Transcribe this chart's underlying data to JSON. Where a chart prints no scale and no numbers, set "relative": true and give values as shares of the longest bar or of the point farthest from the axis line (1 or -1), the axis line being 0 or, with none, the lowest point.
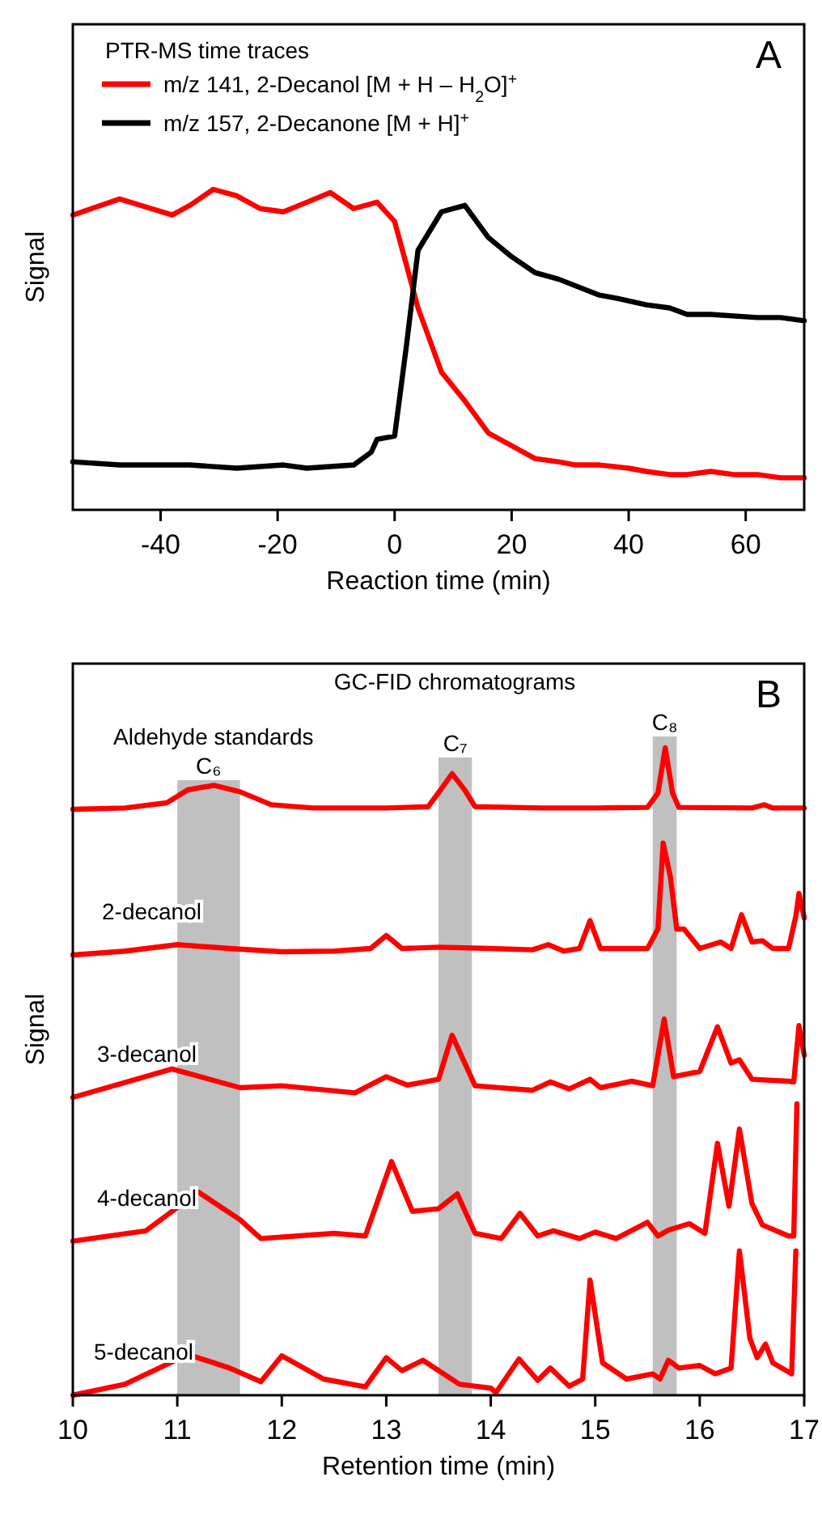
{
  "chart_data": [
    {
      "type": "line",
      "legend_title": "PTR-MS time traces",
      "xlabel": "Reaction time (min)",
      "ylabel": "Signal",
      "relative": true,
      "legend": "top left",
      "tick_labels": "x",
      "annotations": [
        "A"
      ],
      "xlim": [
        -55,
        70
      ],
      "xticks": [
        -40,
        -20,
        0,
        20,
        40,
        60
      ],
      "series": [
        {
          "name": "m/z 141, 2-Decanol [M + H – H$_{2}$O]$^{+}$",
          "color": "#ff0000",
          "x": [
            -55,
            -47,
            -38,
            -35,
            -31,
            -27,
            -23,
            -19,
            -15,
            -11,
            -7,
            -3,
            0,
            4,
            8,
            12,
            16,
            20,
            24,
            28,
            31,
            35,
            40,
            43,
            47,
            50,
            54,
            58,
            62,
            66,
            70
          ],
          "values": [
            0.92,
            0.97,
            0.92,
            0.95,
            1.0,
            0.98,
            0.94,
            0.93,
            0.96,
            0.99,
            0.94,
            0.96,
            0.9,
            0.63,
            0.43,
            0.34,
            0.24,
            0.2,
            0.16,
            0.15,
            0.14,
            0.14,
            0.13,
            0.12,
            0.11,
            0.11,
            0.12,
            0.11,
            0.11,
            0.1,
            0.1
          ]
        },
        {
          "name": "m/z 157, 2-Decanone [M + H]$^{+}$",
          "color": "#000000",
          "x": [
            -55,
            -47,
            -43,
            -35,
            -27,
            -19,
            -15,
            -7,
            -4,
            -3,
            0,
            2,
            4,
            8,
            12,
            16,
            20,
            24,
            28,
            35,
            38,
            43,
            47,
            50,
            54,
            62,
            66,
            70
          ],
          "values": [
            0.15,
            0.14,
            0.14,
            0.14,
            0.13,
            0.14,
            0.13,
            0.14,
            0.18,
            0.22,
            0.23,
            0.51,
            0.81,
            0.93,
            0.95,
            0.85,
            0.79,
            0.74,
            0.72,
            0.67,
            0.66,
            0.64,
            0.63,
            0.61,
            0.61,
            0.6,
            0.6,
            0.59
          ]
        }
      ]
    },
    {
      "type": "line",
      "title": "GC-FID chromatograms",
      "xlabel": "Retention time (min)",
      "ylabel": "Signal",
      "relative": true,
      "legend": false,
      "tick_labels": "x",
      "annotations": [
        "B"
      ],
      "xlim": [
        10,
        17
      ],
      "xticks": [
        10,
        11,
        12,
        13,
        14,
        15,
        16,
        17
      ],
      "bands": [
        {
          "axis": "x",
          "from": 11.0,
          "to": 11.6,
          "label": "C₆",
          "color": "#c0c0c0"
        },
        {
          "axis": "x",
          "from": 13.5,
          "to": 13.82,
          "label": "C₇",
          "color": "#c0c0c0"
        },
        {
          "axis": "x",
          "from": 15.55,
          "to": 15.78,
          "label": "C₈",
          "color": "#c0c0c0"
        }
      ],
      "series": [
        {
          "name": "Aldehyde standards",
          "color": "#ff0000",
          "x": [
            10,
            10.5,
            10.9,
            11.1,
            11.35,
            11.6,
            11.9,
            12.3,
            13.0,
            13.4,
            13.52,
            13.63,
            13.75,
            13.85,
            14.5,
            15.0,
            15.5,
            15.6,
            15.67,
            15.74,
            15.8,
            16.5,
            16.62,
            16.7,
            17
          ],
          "values": [
            0.905,
            0.907,
            0.915,
            0.935,
            0.942,
            0.932,
            0.912,
            0.907,
            0.907,
            0.909,
            0.935,
            0.96,
            0.935,
            0.909,
            0.907,
            0.907,
            0.908,
            0.93,
            1.0,
            0.93,
            0.908,
            0.907,
            0.912,
            0.907,
            0.907
          ]
        },
        {
          "name": "2-decanol",
          "color": "#ff0000",
          "x": [
            10,
            10.5,
            11.0,
            11.5,
            12,
            12.5,
            12.85,
            13.0,
            13.15,
            13.5,
            14,
            14.4,
            14.55,
            14.7,
            14.85,
            14.95,
            15.05,
            15.5,
            15.6,
            15.65,
            15.72,
            15.78,
            15.85,
            16.0,
            16.2,
            16.3,
            16.4,
            16.5,
            16.6,
            16.7,
            16.85,
            16.92,
            16.95,
            17
          ],
          "values": [
            0.68,
            0.686,
            0.696,
            0.69,
            0.685,
            0.686,
            0.69,
            0.71,
            0.69,
            0.692,
            0.69,
            0.688,
            0.696,
            0.686,
            0.69,
            0.733,
            0.69,
            0.69,
            0.72,
            0.853,
            0.8,
            0.72,
            0.72,
            0.69,
            0.7,
            0.69,
            0.742,
            0.7,
            0.702,
            0.69,
            0.69,
            0.74,
            0.775,
            0.737
          ]
        },
        {
          "name": "3-decanol",
          "color": "#ff0000",
          "x": [
            10,
            10.95,
            11.6,
            12,
            12.7,
            13.0,
            13.2,
            13.5,
            13.63,
            13.85,
            14.4,
            14.57,
            14.75,
            14.95,
            15.05,
            15.35,
            15.55,
            15.66,
            15.75,
            16.0,
            16.17,
            16.3,
            16.38,
            16.5,
            16.85,
            16.9,
            16.95,
            17
          ],
          "values": [
            0.46,
            0.504,
            0.475,
            0.478,
            0.467,
            0.492,
            0.479,
            0.488,
            0.556,
            0.478,
            0.471,
            0.484,
            0.473,
            0.488,
            0.475,
            0.485,
            0.478,
            0.581,
            0.492,
            0.5,
            0.569,
            0.513,
            0.518,
            0.488,
            0.485,
            0.484,
            0.571,
            0.525
          ]
        },
        {
          "name": "4-decanol",
          "color": "#ff0000",
          "x": [
            10,
            10.7,
            11.2,
            11.6,
            11.8,
            12.5,
            12.8,
            13.05,
            13.25,
            13.5,
            13.68,
            13.85,
            14.1,
            14.28,
            14.45,
            14.6,
            14.85,
            15.0,
            15.2,
            15.5,
            15.6,
            15.7,
            15.9,
            16.05,
            16.17,
            16.28,
            16.38,
            16.5,
            16.6,
            16.85,
            16.9,
            16.93
          ],
          "values": [
            0.238,
            0.254,
            0.314,
            0.271,
            0.242,
            0.25,
            0.246,
            0.361,
            0.284,
            0.288,
            0.311,
            0.25,
            0.242,
            0.281,
            0.246,
            0.254,
            0.242,
            0.252,
            0.242,
            0.267,
            0.246,
            0.255,
            0.265,
            0.25,
            0.389,
            0.292,
            0.411,
            0.296,
            0.263,
            0.246,
            0.246,
            0.45
          ]
        },
        {
          "name": "5-decanol",
          "color": "#ff0000",
          "x": [
            10,
            10.5,
            11.1,
            11.5,
            11.8,
            12.0,
            12.4,
            12.8,
            13.0,
            13.15,
            13.35,
            13.7,
            14.0,
            14.05,
            14.27,
            14.45,
            14.57,
            14.75,
            14.88,
            14.95,
            15.07,
            15.3,
            15.55,
            15.62,
            15.7,
            15.8,
            16.0,
            16.15,
            16.3,
            16.38,
            16.48,
            16.55,
            16.63,
            16.7,
            16.88,
            16.92
          ],
          "values": [
            0,
            0.017,
            0.063,
            0.042,
            0.021,
            0.061,
            0.025,
            0.013,
            0.058,
            0.038,
            0.054,
            0.017,
            0.011,
            0.004,
            0.056,
            0.023,
            0.042,
            0.014,
            0.025,
            0.178,
            0.05,
            0.025,
            0.033,
            0.025,
            0.054,
            0.042,
            0.046,
            0.033,
            0.042,
            0.223,
            0.088,
            0.058,
            0.079,
            0.05,
            0.033,
            0.223
          ]
        }
      ]
    }
  ]
}
